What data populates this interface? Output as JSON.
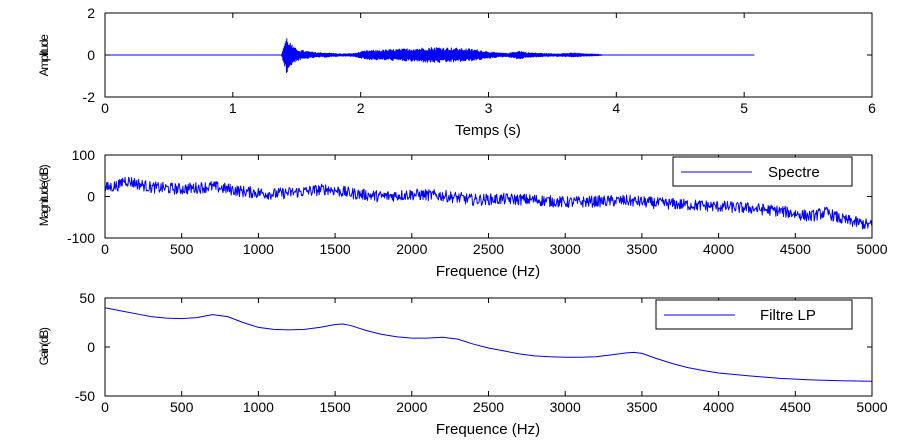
{
  "colors": {
    "series": "#0000ff",
    "axes": "#000000",
    "background": "#ffffff"
  },
  "chart_data": [
    {
      "type": "line",
      "title": "",
      "xlabel": "Temps (s)",
      "ylabel": "Amplitude",
      "xlim": [
        0,
        6
      ],
      "ylim": [
        -2,
        2
      ],
      "xticks": [
        "0",
        "1",
        "2",
        "3",
        "4",
        "5",
        "6"
      ],
      "yticks": [
        "-2",
        "0",
        "2"
      ],
      "grid": false,
      "legend": null,
      "series": [
        {
          "color": "#0000ff",
          "x": [
            0,
            1.38,
            1.4,
            1.42,
            1.44,
            1.46,
            1.48,
            1.52,
            1.58,
            1.65,
            1.75,
            1.85,
            1.95,
            2.05,
            2.2,
            2.35,
            2.5,
            2.6,
            2.7,
            2.85,
            2.95,
            3.05,
            3.15,
            3.22,
            3.25,
            3.3,
            3.5,
            3.6,
            3.68,
            3.75,
            3.85,
            3.9,
            5.08
          ],
          "y_envelope": [
            0,
            0,
            0.5,
            0.9,
            0.7,
            0.5,
            0.35,
            0.25,
            0.18,
            0.12,
            0.1,
            0.05,
            0.08,
            0.22,
            0.25,
            0.3,
            0.35,
            0.38,
            0.35,
            0.3,
            0.22,
            0.12,
            0.08,
            0.18,
            0.2,
            0.12,
            0.06,
            0.08,
            0.1,
            0.06,
            0.04,
            0,
            0
          ]
        }
      ]
    },
    {
      "type": "line",
      "title": "",
      "xlabel": "Frequence (Hz)",
      "ylabel": "Magnitude(dB)",
      "xlim": [
        0,
        5000
      ],
      "ylim": [
        -100,
        100
      ],
      "xticks": [
        "0",
        "500",
        "1000",
        "1500",
        "2000",
        "2500",
        "3000",
        "3500",
        "4000",
        "4500",
        "5000"
      ],
      "yticks": [
        "-100",
        "0",
        "100"
      ],
      "grid": false,
      "legend": "top-right",
      "series": [
        {
          "name": "Spectre",
          "color": "#0000ff",
          "x": [
            0,
            100,
            120,
            300,
            500,
            700,
            900,
            1100,
            1300,
            1450,
            1600,
            1800,
            2000,
            2200,
            2400,
            2600,
            2800,
            3000,
            3200,
            3400,
            3600,
            3800,
            4000,
            4200,
            4400,
            4600,
            4700,
            4800,
            5000
          ],
          "y_center": [
            20,
            28,
            40,
            22,
            18,
            24,
            12,
            6,
            12,
            18,
            8,
            0,
            5,
            2,
            -8,
            -6,
            -8,
            -14,
            -12,
            -10,
            -16,
            -20,
            -24,
            -28,
            -35,
            -48,
            -38,
            -55,
            -70
          ],
          "y_spread": 28
        }
      ]
    },
    {
      "type": "line",
      "title": "",
      "xlabel": "Frequence (Hz)",
      "ylabel": "Gain(dB)",
      "xlim": [
        0,
        5000
      ],
      "ylim": [
        -50,
        50
      ],
      "xticks": [
        "0",
        "500",
        "1000",
        "1500",
        "2000",
        "2500",
        "3000",
        "3500",
        "4000",
        "4500",
        "5000"
      ],
      "yticks": [
        "-50",
        "0",
        "50"
      ],
      "grid": false,
      "legend": "top-right",
      "series": [
        {
          "name": "Filtre LP",
          "color": "#0000ff",
          "x": [
            0,
            100,
            200,
            300,
            400,
            500,
            600,
            700,
            800,
            900,
            1000,
            1100,
            1200,
            1300,
            1400,
            1500,
            1550,
            1600,
            1700,
            1800,
            1900,
            2000,
            2100,
            2200,
            2300,
            2400,
            2500,
            2600,
            2700,
            2800,
            2900,
            3000,
            3100,
            3200,
            3300,
            3400,
            3450,
            3500,
            3600,
            3700,
            3800,
            3900,
            4000,
            4200,
            4400,
            4600,
            4800,
            5000
          ],
          "y": [
            40,
            37,
            34,
            31,
            29.5,
            29,
            30,
            33,
            31,
            25,
            20,
            18,
            17.5,
            18,
            20,
            23,
            23.5,
            22,
            17,
            13,
            10.5,
            9,
            9,
            10,
            8,
            3,
            -1,
            -4,
            -7,
            -9,
            -10,
            -10.5,
            -10.5,
            -10,
            -8,
            -6,
            -5.5,
            -6.5,
            -12,
            -17,
            -21,
            -24,
            -26.5,
            -29.5,
            -32,
            -33.5,
            -34.5,
            -35
          ]
        }
      ]
    }
  ]
}
